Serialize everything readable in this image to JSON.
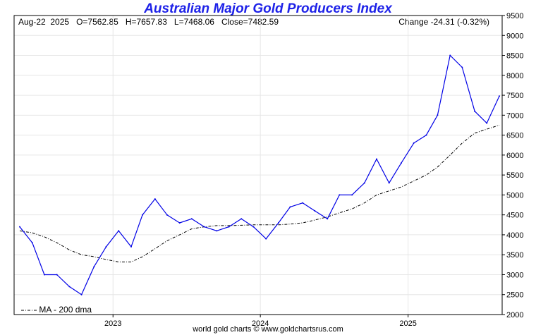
{
  "header": {
    "date": "Aug-22  2025",
    "open": "O=7562.85",
    "high": "H=7657.83",
    "low": "L=7468.06",
    "close": "Close=7482.59",
    "change": "Change -24.31 (-0.32%)"
  },
  "footer": "world gold charts © www.goldchartsrus.com",
  "chart_data": {
    "type": "line",
    "title": "Australian Major Gold Producers Index",
    "ylim": [
      2000,
      9500
    ],
    "yticks": [
      2000,
      2500,
      3000,
      3500,
      4000,
      4500,
      5000,
      5500,
      6000,
      6500,
      7000,
      7500,
      8000,
      8500,
      9000,
      9500
    ],
    "xticks": [
      "2023",
      "2024",
      "2025"
    ],
    "grid": true,
    "legend": "bottom-left",
    "colors": {
      "price": "#0000e6",
      "ma": "#000000",
      "title": "#1e22e8"
    },
    "series": [
      {
        "name": "",
        "x": [
          "2022-05",
          "2022-06",
          "2022-07",
          "2022-08",
          "2022-09",
          "2022-10",
          "2022-11",
          "2022-12",
          "2023-01",
          "2023-02",
          "2023-03",
          "2023-04",
          "2023-05",
          "2023-06",
          "2023-07",
          "2023-08",
          "2023-09",
          "2023-10",
          "2023-11",
          "2023-12",
          "2024-01",
          "2024-02",
          "2024-03",
          "2024-04",
          "2024-05",
          "2024-06",
          "2024-07",
          "2024-08",
          "2024-09",
          "2024-10",
          "2024-11",
          "2024-12",
          "2025-01",
          "2025-02",
          "2025-03",
          "2025-04",
          "2025-05",
          "2025-06",
          "2025-07",
          "2025-08"
        ],
        "values": [
          4200,
          3800,
          3000,
          3000,
          2700,
          2500,
          3200,
          3700,
          4100,
          3700,
          4500,
          4900,
          4500,
          4300,
          4400,
          4200,
          4100,
          4200,
          4400,
          4200,
          3900,
          4300,
          4700,
          4800,
          4600,
          4400,
          5000,
          5000,
          5300,
          5900,
          5300,
          5800,
          6300,
          6500,
          7000,
          8500,
          8200,
          7100,
          6800,
          7480
        ]
      },
      {
        "name": "MA - 200 dma",
        "x": [
          "2022-05",
          "2022-06",
          "2022-07",
          "2022-08",
          "2022-09",
          "2022-10",
          "2022-11",
          "2022-12",
          "2023-01",
          "2023-02",
          "2023-03",
          "2023-04",
          "2023-05",
          "2023-06",
          "2023-07",
          "2023-08",
          "2023-09",
          "2023-10",
          "2023-11",
          "2023-12",
          "2024-01",
          "2024-02",
          "2024-03",
          "2024-04",
          "2024-05",
          "2024-06",
          "2024-07",
          "2024-08",
          "2024-09",
          "2024-10",
          "2024-11",
          "2024-12",
          "2025-01",
          "2025-02",
          "2025-03",
          "2025-04",
          "2025-05",
          "2025-06",
          "2025-07",
          "2025-08"
        ],
        "values": [
          4100,
          4050,
          3950,
          3800,
          3620,
          3500,
          3450,
          3380,
          3320,
          3320,
          3450,
          3650,
          3850,
          4000,
          4150,
          4200,
          4230,
          4230,
          4240,
          4250,
          4250,
          4250,
          4270,
          4300,
          4370,
          4450,
          4550,
          4650,
          4800,
          5000,
          5100,
          5200,
          5350,
          5500,
          5700,
          6000,
          6300,
          6550,
          6650,
          6750
        ]
      }
    ]
  }
}
